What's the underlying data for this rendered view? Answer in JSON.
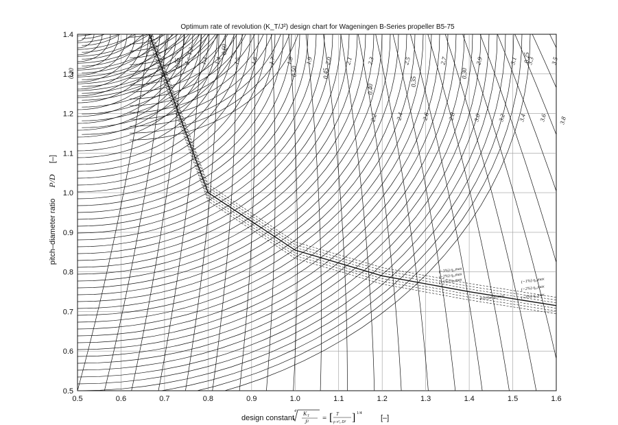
{
  "chart_data": {
    "type": "line",
    "title": "Optimum rate of revolution (K_T/J²) design chart for Wageningen B-Series propeller B5-75",
    "xlabel": "design constant",
    "xlabel_unit": "[–]",
    "ylabel": "pitch–diameter ratio",
    "ylabel_symbol": "P/D",
    "ylabel_unit": "[–]",
    "xlim": [
      0.5,
      1.6
    ],
    "ylim": [
      0.5,
      1.4
    ],
    "grid": true,
    "x_ticks": [
      "0.5",
      "0.6",
      "0.7",
      "0.8",
      "0.9",
      "1.0",
      "1.1",
      "1.2",
      "1.3",
      "1.4",
      "1.5",
      "1.6"
    ],
    "y_ticks": [
      "0.5",
      "0.6",
      "0.7",
      "0.8",
      "0.9",
      "1.0",
      "1.1",
      "1.2",
      "1.3",
      "1.4"
    ],
    "j_labels_top": [
      "J = 1.2",
      "1.3",
      "1.4",
      "1.5",
      "1.6",
      "1.7",
      "1.8",
      "1.9",
      "2.0",
      "2.1",
      "2.3",
      "2.5",
      "2.7",
      "2.9",
      "3.1",
      "3.3",
      "3.5"
    ],
    "j_labels_mid": [
      "2.2",
      "2.4",
      "2.6",
      "2.8",
      "3.0",
      "3.2",
      "3.4",
      "3.6",
      "3.8"
    ],
    "efficiency_labels": [
      "0.20",
      "0.55",
      "0.60",
      "0.50",
      "0.45",
      "0.40",
      "0.35",
      "0.30",
      "0.25"
    ],
    "optimum_line": {
      "name": "P/D for η₀,max",
      "points": [
        [
          0.665,
          1.4
        ],
        [
          0.8,
          1.0
        ],
        [
          1.0,
          0.855
        ],
        [
          1.2,
          0.79
        ],
        [
          1.4,
          0.75
        ],
        [
          1.6,
          0.715
        ]
      ]
    },
    "band_labels": [
      "(−3%) η₀,max",
      "(−2%) η₀,max",
      "(−1%) η₀,max",
      "P/D for η₀,max",
      "(−1%) η₀,max",
      "(−2%) η₀,max",
      "(−3%) η₀,max"
    ],
    "efficiency_curve_centers": [
      [
        0.5,
        1.4
      ],
      [
        0.51,
        1.5
      ],
      [
        0.49,
        1.6
      ],
      [
        0.62,
        1.5
      ]
    ],
    "j_line_parameters": {
      "first": {
        "x_at_top": 0.665,
        "x_at_bottom": 0.5
      },
      "spacing_x": 0.04
    }
  }
}
